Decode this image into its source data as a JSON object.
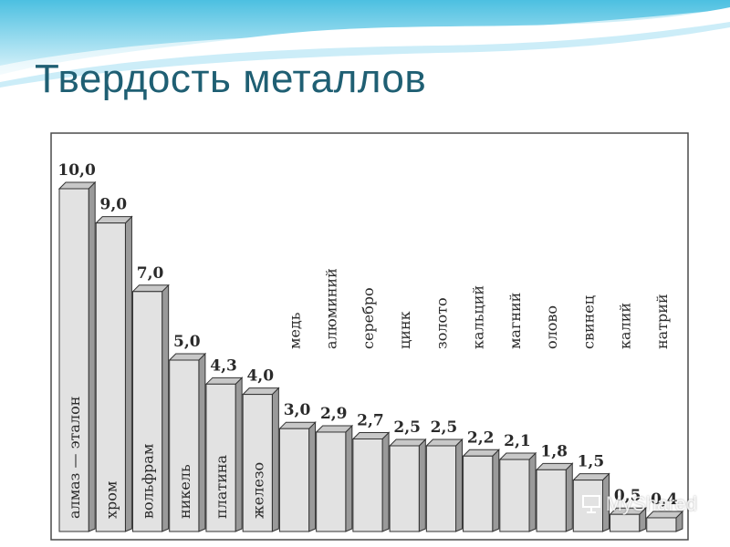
{
  "slide": {
    "title": "Твердость металлов",
    "watermark": "MyShared"
  },
  "chart_data": {
    "type": "bar",
    "categories": [
      "алмаз — эталон",
      "хром",
      "вольфрам",
      "никель",
      "платина",
      "железо",
      "медь",
      "алюминий",
      "серебро",
      "цинк",
      "золото",
      "кальций",
      "магний",
      "олово",
      "свинец",
      "калий",
      "натрий"
    ],
    "values": [
      10.0,
      9.0,
      7.0,
      5.0,
      4.3,
      4.0,
      3.0,
      2.9,
      2.7,
      2.5,
      2.5,
      2.2,
      2.1,
      1.8,
      1.5,
      0.5,
      0.4
    ],
    "value_labels": [
      "10,0",
      "9,0",
      "7,0",
      "5,0",
      "4,3",
      "4,0",
      "3,0",
      "2,9",
      "2,7",
      "2,5",
      "2,5",
      "2,2",
      "2,1",
      "1,8",
      "1,5",
      "0,5",
      "0,4"
    ],
    "title": "",
    "xlabel": "",
    "ylabel": "",
    "ylim": [
      0,
      10
    ],
    "grid": false,
    "colors": {
      "bar_front": "#e2e2e2",
      "bar_side": "#9a9a9a",
      "bar_top": "#c8c8c8",
      "border": "#333333"
    }
  },
  "colors": {
    "title": "#1f5f73",
    "banner": "#5fc6e3"
  }
}
